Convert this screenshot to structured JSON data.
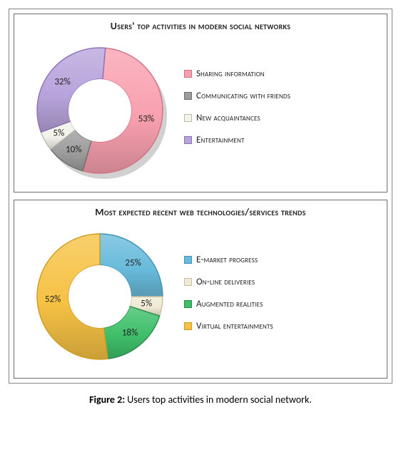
{
  "caption_label": "Figure 2:",
  "caption_text": "Users top activities in modern social network.",
  "panels": [
    {
      "title": "Users' top activities in modern social networks",
      "type": "donut",
      "title_fontsize": 14,
      "chart_size": 220,
      "outer_r": 88,
      "inner_r": 44,
      "start_angle_deg": -85,
      "shadow": true,
      "slices": [
        {
          "label": "Sharing information",
          "value": 53,
          "display": "53%",
          "color": "#f9a0af",
          "edge": "#d37284"
        },
        {
          "label": "Communicating with friends",
          "value": 10,
          "display": "10%",
          "color": "#9d9d9d",
          "edge": "#6f6f6f"
        },
        {
          "label": "New acquaintances",
          "value": 5,
          "display": "5%",
          "color": "#f3f3eb",
          "edge": "#bbbbaa"
        },
        {
          "label": "Entertainment",
          "value": 32,
          "display": "32%",
          "color": "#b8a4dc",
          "edge": "#8a72b8"
        }
      ]
    },
    {
      "title": "Most expected recent web technologies/services trends",
      "type": "donut",
      "title_fontsize": 14,
      "chart_size": 220,
      "outer_r": 88,
      "inner_r": 44,
      "start_angle_deg": -90,
      "shadow": false,
      "slices": [
        {
          "label": "E-market progress",
          "value": 25,
          "display": "25%",
          "color": "#69bbdc",
          "edge": "#3f93b6"
        },
        {
          "label": "On-line deliveries",
          "value": 5,
          "display": "5%",
          "color": "#f0ead4",
          "edge": "#c8c0a0"
        },
        {
          "label": "Augmented realities",
          "value": 18,
          "display": "18%",
          "color": "#3fbf6a",
          "edge": "#2a8a4a"
        },
        {
          "label": "Virtual entertainments",
          "value": 52,
          "display": "52%",
          "color": "#f6c244",
          "edge": "#cf9a20"
        }
      ]
    }
  ]
}
